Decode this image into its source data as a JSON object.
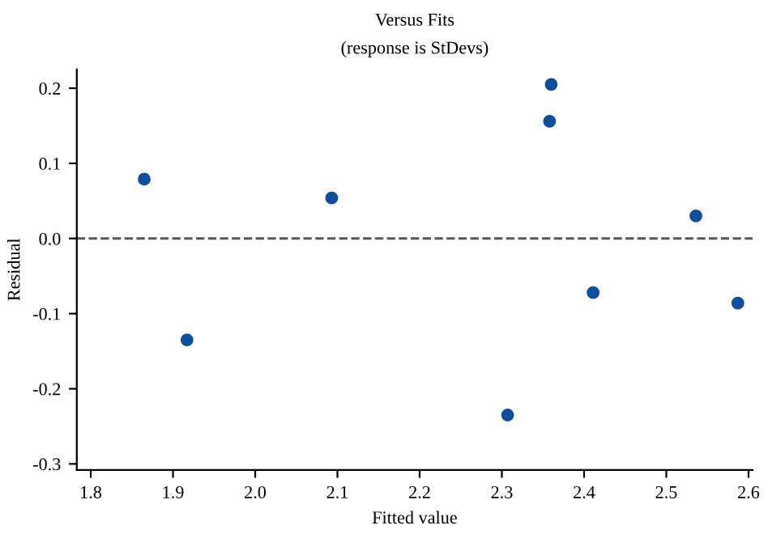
{
  "chart_data": {
    "type": "scatter",
    "title": "Versus Fits",
    "subtitle": "(response is StDevs)",
    "xlabel": "Fitted value",
    "ylabel": "Residual",
    "x": [
      1.865,
      1.917,
      2.093,
      2.307,
      2.358,
      2.36,
      2.411,
      2.536,
      2.587
    ],
    "values": [
      0.079,
      -0.135,
      0.054,
      -0.235,
      0.156,
      0.205,
      -0.072,
      0.03,
      -0.086
    ],
    "color": "#0d4f9e",
    "marker": "circle",
    "xlim": [
      1.783,
      2.605
    ],
    "ylim": [
      -0.308,
      0.225
    ],
    "xticks": [
      1.8,
      1.9,
      {
        "value": 2.0,
        "label": "2.0"
      },
      2.1,
      2.2,
      2.3,
      2.4,
      2.5,
      2.6
    ],
    "yticks": [
      -0.3,
      -0.2,
      -0.1,
      {
        "value": 0.0,
        "label": "0.0"
      },
      0.1,
      0.2
    ],
    "ref_lines": [
      {
        "axis": "y",
        "value": 0,
        "color": "#555555",
        "line_style": "dashed"
      }
    ],
    "grid": false
  }
}
